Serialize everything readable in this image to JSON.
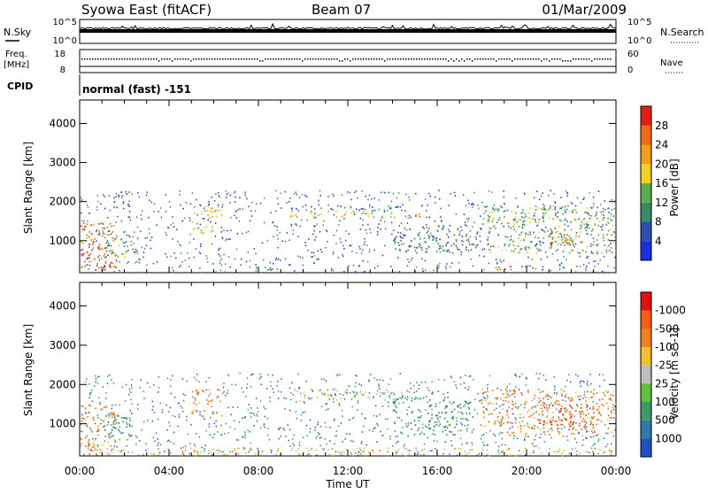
{
  "header": {
    "station": "Syowa East (fitACF)",
    "beam": "Beam 07",
    "date": "01/Mar/2009"
  },
  "noise_panel": {
    "left_label": "N.Sky",
    "right_label": "N.Search",
    "left_ticks": [
      "10^5",
      "10^0"
    ],
    "right_ticks": [
      "10^5",
      "10^0"
    ]
  },
  "freq_panel": {
    "left_label_1": "Freq.",
    "left_label_2": "[MHz]",
    "right_label": "Nave",
    "left_ticks": [
      "18",
      "8"
    ],
    "right_ticks": [
      "60",
      "0"
    ]
  },
  "cpid": {
    "label": "CPID",
    "value": "normal (fast) -151"
  },
  "x_axis": {
    "ticks": [
      "00:00",
      "04:00",
      "08:00",
      "12:00",
      "16:00",
      "20:00",
      "00:00"
    ],
    "label": "Time UT"
  },
  "chart_data": [
    {
      "type": "heatmap",
      "panel": "power",
      "ylabel": "Slant Range [km]",
      "yticks": [
        1000,
        2000,
        3000,
        4000
      ],
      "ylim": [
        180,
        4600
      ],
      "xlim_hours": [
        0,
        24
      ],
      "colorbar": {
        "label": "Power [dB]",
        "tick_labels": [
          "4",
          "8",
          "12",
          "16",
          "20",
          "24",
          "28"
        ],
        "colors": [
          "#1a2fe0",
          "#2f4fb0",
          "#3a8a6a",
          "#5aab50",
          "#f0d020",
          "#f0a018",
          "#f06818",
          "#e02010"
        ]
      },
      "regions": [
        {
          "t0": 0.0,
          "t1": 1.6,
          "r0": 300,
          "r1": 1500,
          "level": 6
        },
        {
          "t0": 0.5,
          "t1": 2.0,
          "r0": 250,
          "r1": 380,
          "level": 7
        },
        {
          "t0": 1.0,
          "t1": 2.6,
          "r0": 600,
          "r1": 1300,
          "level": 3
        },
        {
          "t0": 1.5,
          "t1": 2.2,
          "r0": 1800,
          "r1": 2300,
          "level": 1
        },
        {
          "t0": 5.0,
          "t1": 6.4,
          "r0": 1200,
          "r1": 1900,
          "level": 4
        },
        {
          "t0": 9.3,
          "t1": 14.5,
          "r0": 1600,
          "r1": 1780,
          "level": 4
        },
        {
          "t0": 9.3,
          "t1": 14.5,
          "r0": 1780,
          "r1": 1900,
          "level": 2
        },
        {
          "t0": 14.5,
          "t1": 15.2,
          "r0": 1550,
          "r1": 1800,
          "level": 6
        },
        {
          "t0": 14.0,
          "t1": 18.0,
          "r0": 700,
          "r1": 1400,
          "level": 2
        },
        {
          "t0": 18.0,
          "t1": 24.0,
          "r0": 700,
          "r1": 1900,
          "level": 3
        },
        {
          "t0": 21.0,
          "t1": 22.5,
          "r0": 850,
          "r1": 1200,
          "level": 6
        },
        {
          "t0": 18.5,
          "t1": 19.5,
          "r0": 250,
          "r1": 360,
          "level": 7
        }
      ]
    },
    {
      "type": "heatmap",
      "panel": "velocity",
      "ylabel": "Slant Range [km]",
      "yticks": [
        1000,
        2000,
        3000,
        4000
      ],
      "ylim": [
        180,
        4600
      ],
      "xlim_hours": [
        0,
        24
      ],
      "colorbar": {
        "label": "Velocity [m s^-1]",
        "tick_labels": [
          "1000",
          "500",
          "100",
          "25",
          "-25",
          "-100",
          "-500",
          "-1000"
        ],
        "colors": [
          "#2050c0",
          "#2f78a8",
          "#3a9a6a",
          "#60c040",
          "#bdbdbd",
          "#f0c030",
          "#f08020",
          "#f06018",
          "#e01010"
        ]
      },
      "regions": [
        {
          "t0": 0.0,
          "t1": 1.6,
          "r0": 300,
          "r1": 1500,
          "level": 6
        },
        {
          "t0": 0.2,
          "t1": 24.0,
          "r0": 200,
          "r1": 400,
          "level": 5
        },
        {
          "t0": 1.0,
          "t1": 2.5,
          "r0": 700,
          "r1": 1300,
          "level": 2
        },
        {
          "t0": 5.0,
          "t1": 6.4,
          "r0": 1200,
          "r1": 1900,
          "level": 6
        },
        {
          "t0": 9.3,
          "t1": 14.5,
          "r0": 1600,
          "r1": 1900,
          "level": 4
        },
        {
          "t0": 14.0,
          "t1": 17.5,
          "r0": 700,
          "r1": 1700,
          "level": 2
        },
        {
          "t0": 18.0,
          "t1": 24.0,
          "r0": 700,
          "r1": 1900,
          "level": 6
        },
        {
          "t0": 20.5,
          "t1": 23.0,
          "r0": 900,
          "r1": 1500,
          "level": 7
        }
      ]
    }
  ]
}
